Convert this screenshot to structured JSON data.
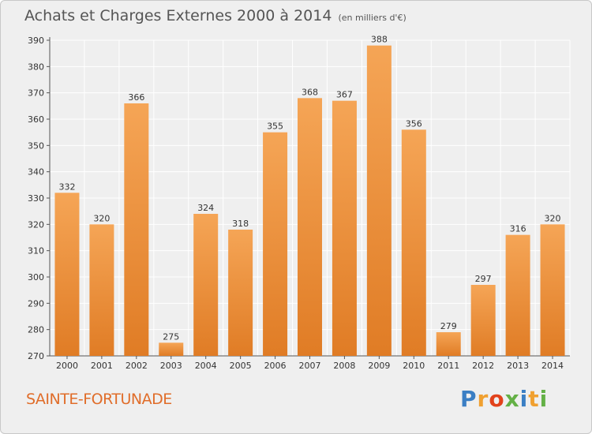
{
  "header": {
    "title": "Achats et Charges Externes 2000 à 2014",
    "subtitle": "(en milliers d'€)"
  },
  "footer": {
    "commune": "SAINTE-FORTUNADE",
    "logo": [
      "P",
      "r",
      "o",
      "x",
      "i",
      "t",
      "i"
    ],
    "logo_colors": [
      "#3b7fc4",
      "#f0a030",
      "#e2421b",
      "#64b046",
      "#3b7fc4",
      "#f0a030",
      "#64b046"
    ]
  },
  "colors": {
    "bar_top": "#f5a556",
    "bar_bottom": "#e07c25",
    "grid": "#ffffff",
    "text": "#333333"
  },
  "chart_data": {
    "type": "bar",
    "title": "Achats et Charges Externes 2000 à 2014",
    "subtitle": "(en milliers d'€)",
    "categories": [
      "2000",
      "2001",
      "2002",
      "2003",
      "2004",
      "2005",
      "2006",
      "2007",
      "2008",
      "2009",
      "2010",
      "2011",
      "2012",
      "2013",
      "2014"
    ],
    "values": [
      332,
      320,
      366,
      275,
      324,
      318,
      355,
      368,
      367,
      388,
      356,
      279,
      297,
      316,
      320
    ],
    "ylim": [
      270,
      390
    ],
    "yticks": [
      270,
      280,
      290,
      300,
      310,
      320,
      330,
      340,
      350,
      360,
      370,
      380,
      390
    ],
    "grid": true,
    "data_labels": true
  }
}
